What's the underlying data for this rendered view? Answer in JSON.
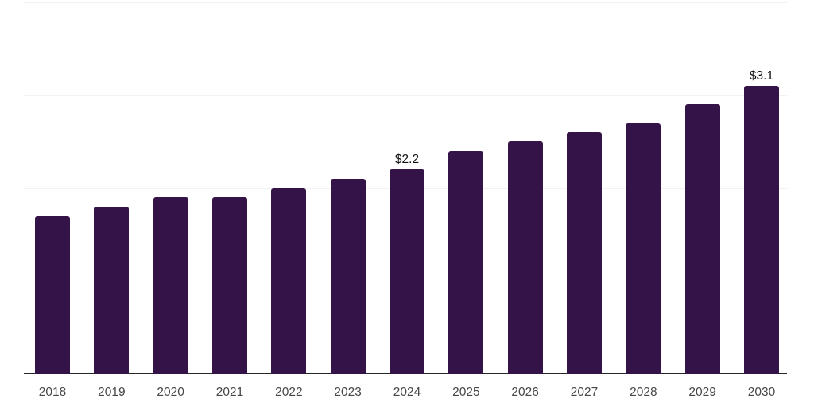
{
  "chart_data": {
    "type": "bar",
    "title": "",
    "categories": [
      "2018",
      "2019",
      "2020",
      "2021",
      "2022",
      "2023",
      "2024",
      "2025",
      "2026",
      "2027",
      "2028",
      "2029",
      "2030"
    ],
    "values": [
      1.7,
      1.8,
      1.9,
      1.9,
      2.0,
      2.1,
      2.2,
      2.4,
      2.5,
      2.6,
      2.7,
      2.9,
      3.1
    ],
    "data_labels": [
      "",
      "",
      "",
      "",
      "",
      "",
      "$2.2",
      "",
      "",
      "",
      "",
      "",
      "$3.1"
    ],
    "xlabel": "",
    "ylabel": "",
    "ylim": [
      0,
      4
    ],
    "gridline_values": [
      1,
      2,
      3,
      4
    ],
    "grid": true,
    "legend": "none",
    "colors": {
      "bar": "#341348",
      "gridline": "#f2f2f2",
      "axis_line": "#262626",
      "tick_label": "#474747",
      "data_label": "#111111"
    }
  }
}
